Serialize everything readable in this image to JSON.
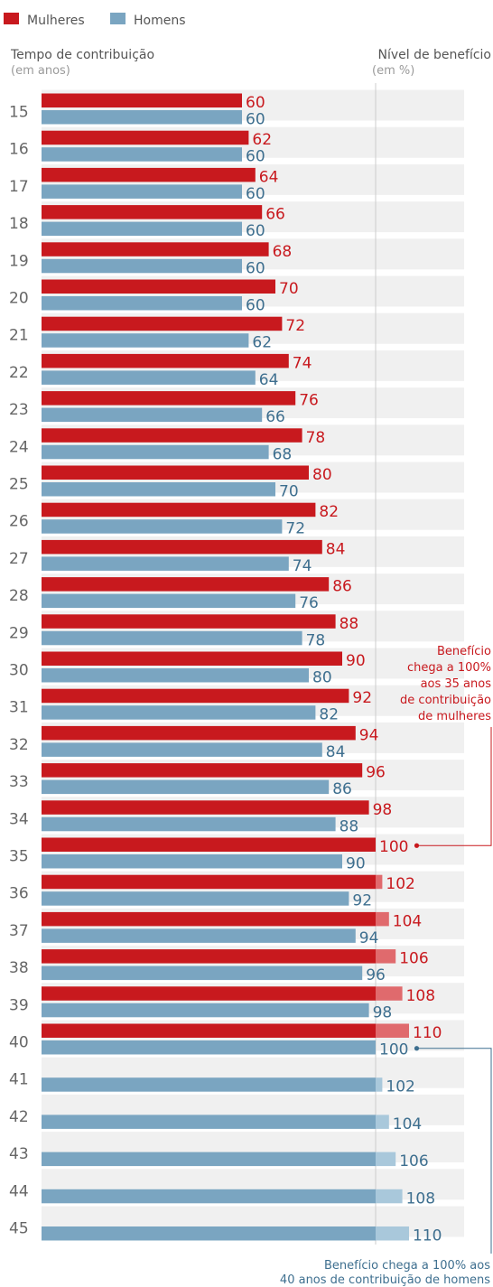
{
  "chart_data": {
    "type": "bar",
    "legend": "top-left",
    "series": [
      {
        "name": "Mulheres",
        "color": "#c8191e",
        "overColor": "#e06a6d",
        "values": [
          60,
          62,
          64,
          66,
          68,
          70,
          72,
          74,
          76,
          78,
          80,
          82,
          84,
          86,
          88,
          90,
          92,
          94,
          96,
          98,
          100,
          102,
          104,
          106,
          108,
          110,
          null,
          null,
          null,
          null,
          null
        ]
      },
      {
        "name": "Homens",
        "color": "#7aa5c1",
        "overColor": "#a9c8db",
        "values": [
          60,
          60,
          60,
          60,
          60,
          60,
          62,
          64,
          66,
          68,
          70,
          72,
          74,
          76,
          78,
          80,
          82,
          84,
          86,
          88,
          90,
          92,
          94,
          96,
          98,
          100,
          102,
          104,
          106,
          108,
          110
        ]
      }
    ],
    "categories": [
      "15",
      "16",
      "17",
      "18",
      "19",
      "20",
      "21",
      "22",
      "23",
      "24",
      "25",
      "26",
      "27",
      "28",
      "29",
      "30",
      "31",
      "32",
      "33",
      "34",
      "35",
      "36",
      "37",
      "38",
      "39",
      "40",
      "41",
      "42",
      "43",
      "44",
      "45"
    ],
    "reference_value": 100,
    "ylabel": "Tempo de contribuição",
    "ylabel_unit": "(em anos)",
    "xlabel": "Nível de benefício",
    "xlabel_unit": "(em %)",
    "annotations": [
      {
        "series": "Mulheres",
        "category": "35",
        "text": [
          "Benefício",
          "chega a 100%",
          "aos 35 anos",
          "de contribuição",
          "de mulheres"
        ]
      },
      {
        "series": "Homens",
        "category": "40",
        "text": [
          "Benefício chega a 100% aos",
          "40 anos de contribuição de homens"
        ]
      }
    ],
    "colors": {
      "women_text": "#c8191e",
      "men_text": "#3e6f8f",
      "band": "#f0f0f0",
      "refline": "#cccccc"
    }
  }
}
